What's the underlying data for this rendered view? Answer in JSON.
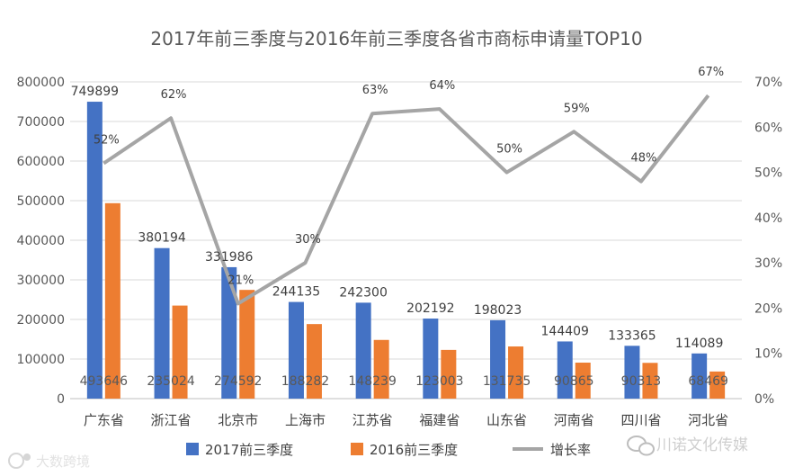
{
  "chart_data": {
    "type": "bar",
    "title": "2017年前三季度与2016年前三季度各省市商标申请量TOP10",
    "categories": [
      "广东省",
      "浙江省",
      "北京市",
      "上海市",
      "江苏省",
      "福建省",
      "山东省",
      "河南省",
      "四川省",
      "河北省"
    ],
    "series": [
      {
        "name": "2017前三季度",
        "type": "bar",
        "axis": "left",
        "color": "#4472C4",
        "values": [
          749899,
          380194,
          331986,
          244135,
          242300,
          202192,
          198023,
          144409,
          133365,
          114089
        ]
      },
      {
        "name": "2016前三季度",
        "type": "bar",
        "axis": "left",
        "color": "#ED7D31",
        "values": [
          493646,
          235024,
          274592,
          188282,
          148239,
          123003,
          131735,
          90865,
          90313,
          68469
        ]
      },
      {
        "name": "增长率",
        "type": "line",
        "axis": "right",
        "color": "#A5A5A5",
        "values": [
          52,
          62,
          21,
          30,
          63,
          64,
          50,
          59,
          48,
          67
        ]
      }
    ],
    "y_left": {
      "min": 0,
      "max": 800000,
      "step": 100000,
      "ticks": [
        "0",
        "100000",
        "200000",
        "300000",
        "400000",
        "500000",
        "600000",
        "700000",
        "800000"
      ]
    },
    "y_right": {
      "min": 0,
      "max": 70,
      "step": 10,
      "ticks": [
        "0%",
        "10%",
        "20%",
        "30%",
        "40%",
        "50%",
        "60%",
        "70%"
      ]
    },
    "grid": true,
    "legend": "bottom"
  },
  "watermarks": {
    "left": "大数跨境",
    "right": "川诺文化传媒"
  }
}
